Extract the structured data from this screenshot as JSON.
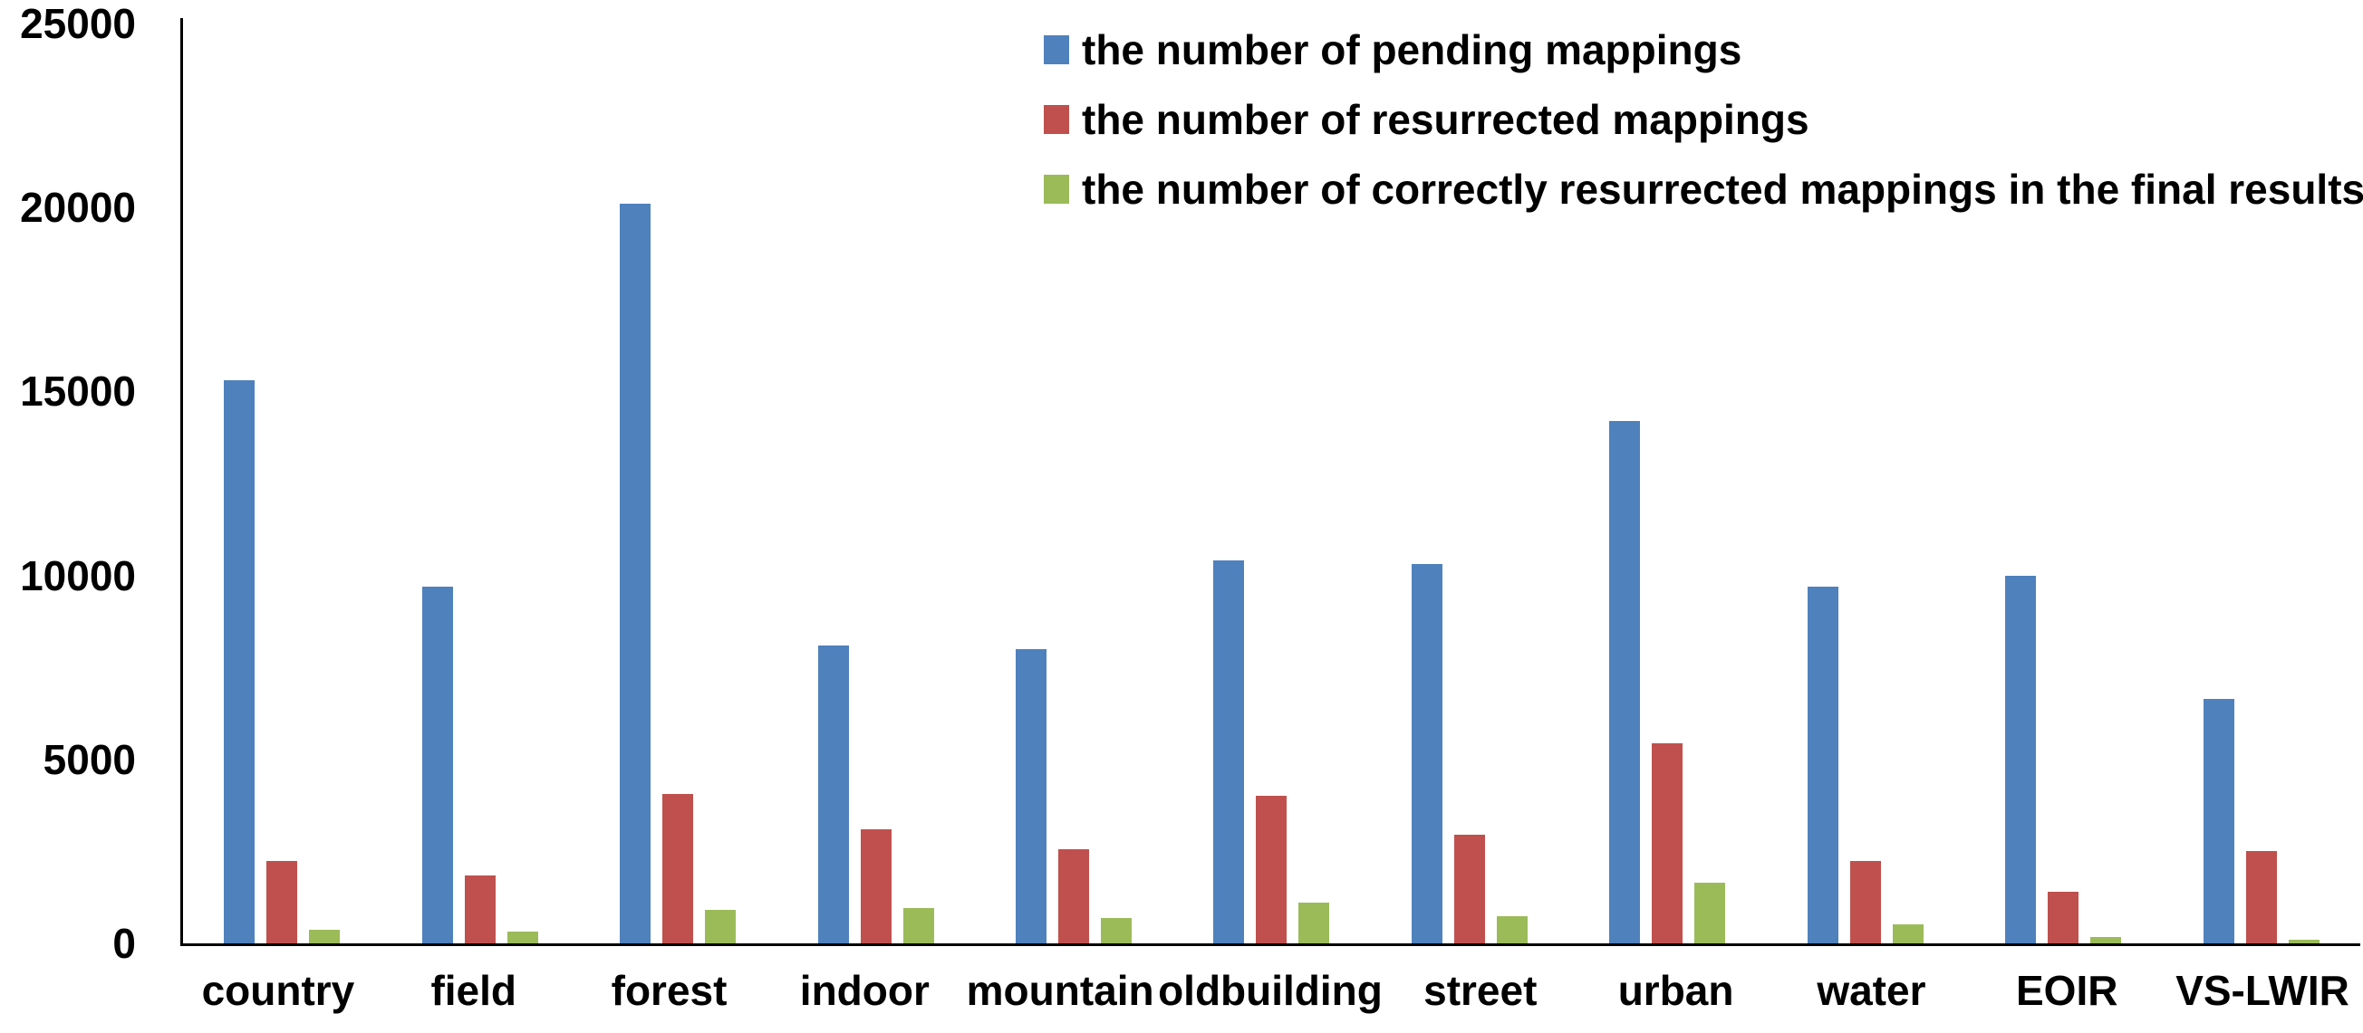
{
  "chart_data": {
    "type": "bar",
    "title": "",
    "xlabel": "",
    "ylabel": "",
    "ylim": [
      0,
      25000
    ],
    "yticks": [
      0,
      5000,
      10000,
      15000,
      20000,
      25000
    ],
    "grid": false,
    "legend_position": "top-right",
    "categories": [
      "country",
      "field",
      "forest",
      "indoor",
      "mountain",
      "oldbuilding",
      "street",
      "urban",
      "water",
      "EOIR",
      "VS-LWIR"
    ],
    "series": [
      {
        "key": "pending",
        "name": "the number of pending mappings",
        "color": "#4F81BD",
        "values": [
          15300,
          9700,
          20100,
          8100,
          8000,
          10400,
          10300,
          14200,
          9700,
          10000,
          6650
        ]
      },
      {
        "key": "resurrected",
        "name": "the number of resurrected mappings",
        "color": "#C0504D",
        "values": [
          2250,
          1850,
          4050,
          3100,
          2550,
          4000,
          2950,
          5450,
          2250,
          1400,
          2500
        ]
      },
      {
        "key": "correct",
        "name": "the number of correctly resurrected mappings in the final results",
        "color": "#9BBB59",
        "values": [
          380,
          310,
          900,
          960,
          680,
          1100,
          740,
          1650,
          520,
          170,
          100
        ]
      }
    ]
  }
}
